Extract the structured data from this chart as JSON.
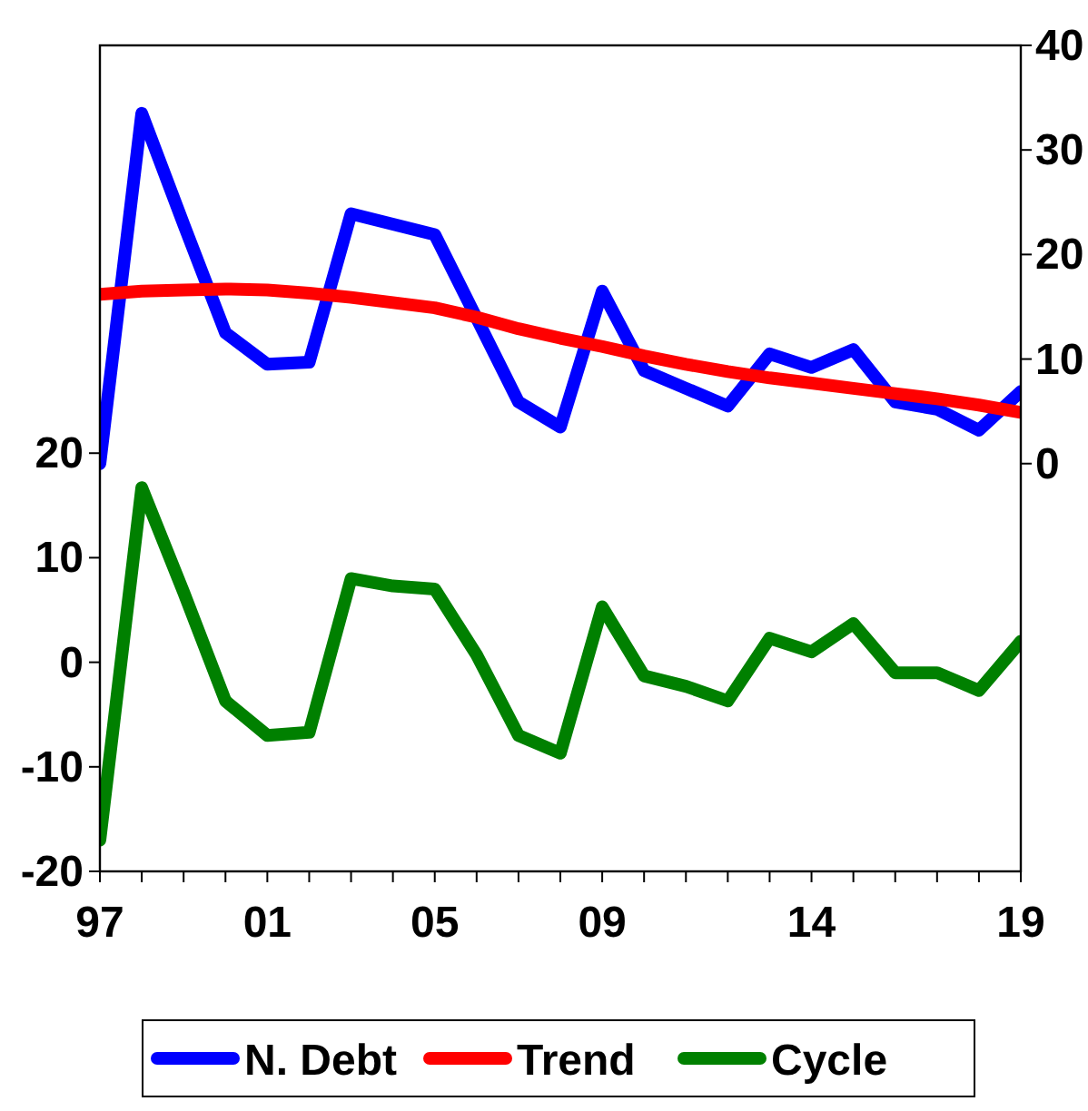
{
  "chart_data": {
    "type": "line",
    "x": [
      1997,
      1998,
      1999,
      2000,
      2001,
      2002,
      2003,
      2004,
      2005,
      2006,
      2007,
      2008,
      2009,
      2010,
      2011,
      2012,
      2013,
      2014,
      2015,
      2016,
      2017,
      2018,
      2019
    ],
    "xlim": [
      1997,
      2019
    ],
    "xticks": [
      {
        "value": 1997,
        "label": "97"
      },
      {
        "value": 1998,
        "label": null
      },
      {
        "value": 1999,
        "label": null
      },
      {
        "value": 2000,
        "label": null
      },
      {
        "value": 2001,
        "label": "01"
      },
      {
        "value": 2002,
        "label": null
      },
      {
        "value": 2003,
        "label": null
      },
      {
        "value": 2004,
        "label": null
      },
      {
        "value": 2005,
        "label": "05"
      },
      {
        "value": 2006,
        "label": null
      },
      {
        "value": 2007,
        "label": null
      },
      {
        "value": 2008,
        "label": null
      },
      {
        "value": 2009,
        "label": "09"
      },
      {
        "value": 2010,
        "label": null
      },
      {
        "value": 2011,
        "label": null
      },
      {
        "value": 2012,
        "label": null
      },
      {
        "value": 2013,
        "label": null
      },
      {
        "value": 2014,
        "label": "14"
      },
      {
        "value": 2015,
        "label": null
      },
      {
        "value": 2016,
        "label": null
      },
      {
        "value": 2017,
        "label": null
      },
      {
        "value": 2018,
        "label": null
      },
      {
        "value": 2019,
        "label": "19"
      }
    ],
    "ylim": [
      -20,
      59
    ],
    "yticks": [
      -20,
      -10,
      0,
      10,
      20
    ],
    "y2lim": [
      -39,
      40
    ],
    "y2ticks": [
      0,
      10,
      20,
      30,
      40
    ],
    "series": [
      {
        "name": "N. Debt",
        "color": "#0000ff",
        "axis": "y2",
        "values": [
          0,
          33.5,
          22.9,
          12.5,
          9.5,
          9.7,
          23.9,
          22.9,
          21.9,
          13.9,
          5.9,
          3.5,
          16.5,
          8.9,
          7.2,
          5.5,
          10.5,
          9.2,
          10.9,
          5.9,
          5.2,
          3.2,
          6.9
        ]
      },
      {
        "name": "Trend",
        "color": "#ff0000",
        "axis": "y2",
        "values": [
          16.2,
          16.5,
          16.6,
          16.7,
          16.6,
          16.3,
          15.9,
          15.4,
          14.9,
          14.0,
          12.9,
          12.0,
          11.2,
          10.3,
          9.5,
          8.8,
          8.2,
          7.7,
          7.2,
          6.7,
          6.2,
          5.6,
          4.9
        ]
      },
      {
        "name": "Cycle",
        "color": "#008000",
        "axis": "y",
        "values": [
          -17,
          16.7,
          6.7,
          -3.7,
          -7,
          -6.7,
          8,
          7.3,
          7,
          0.7,
          -7,
          -8.7,
          5.3,
          -1.3,
          -2.3,
          -3.7,
          2.3,
          1,
          3.7,
          -1,
          -1,
          -2.7,
          2
        ]
      }
    ],
    "grid": false,
    "legend": "bottom",
    "line_style": "solid",
    "marker": "none"
  }
}
